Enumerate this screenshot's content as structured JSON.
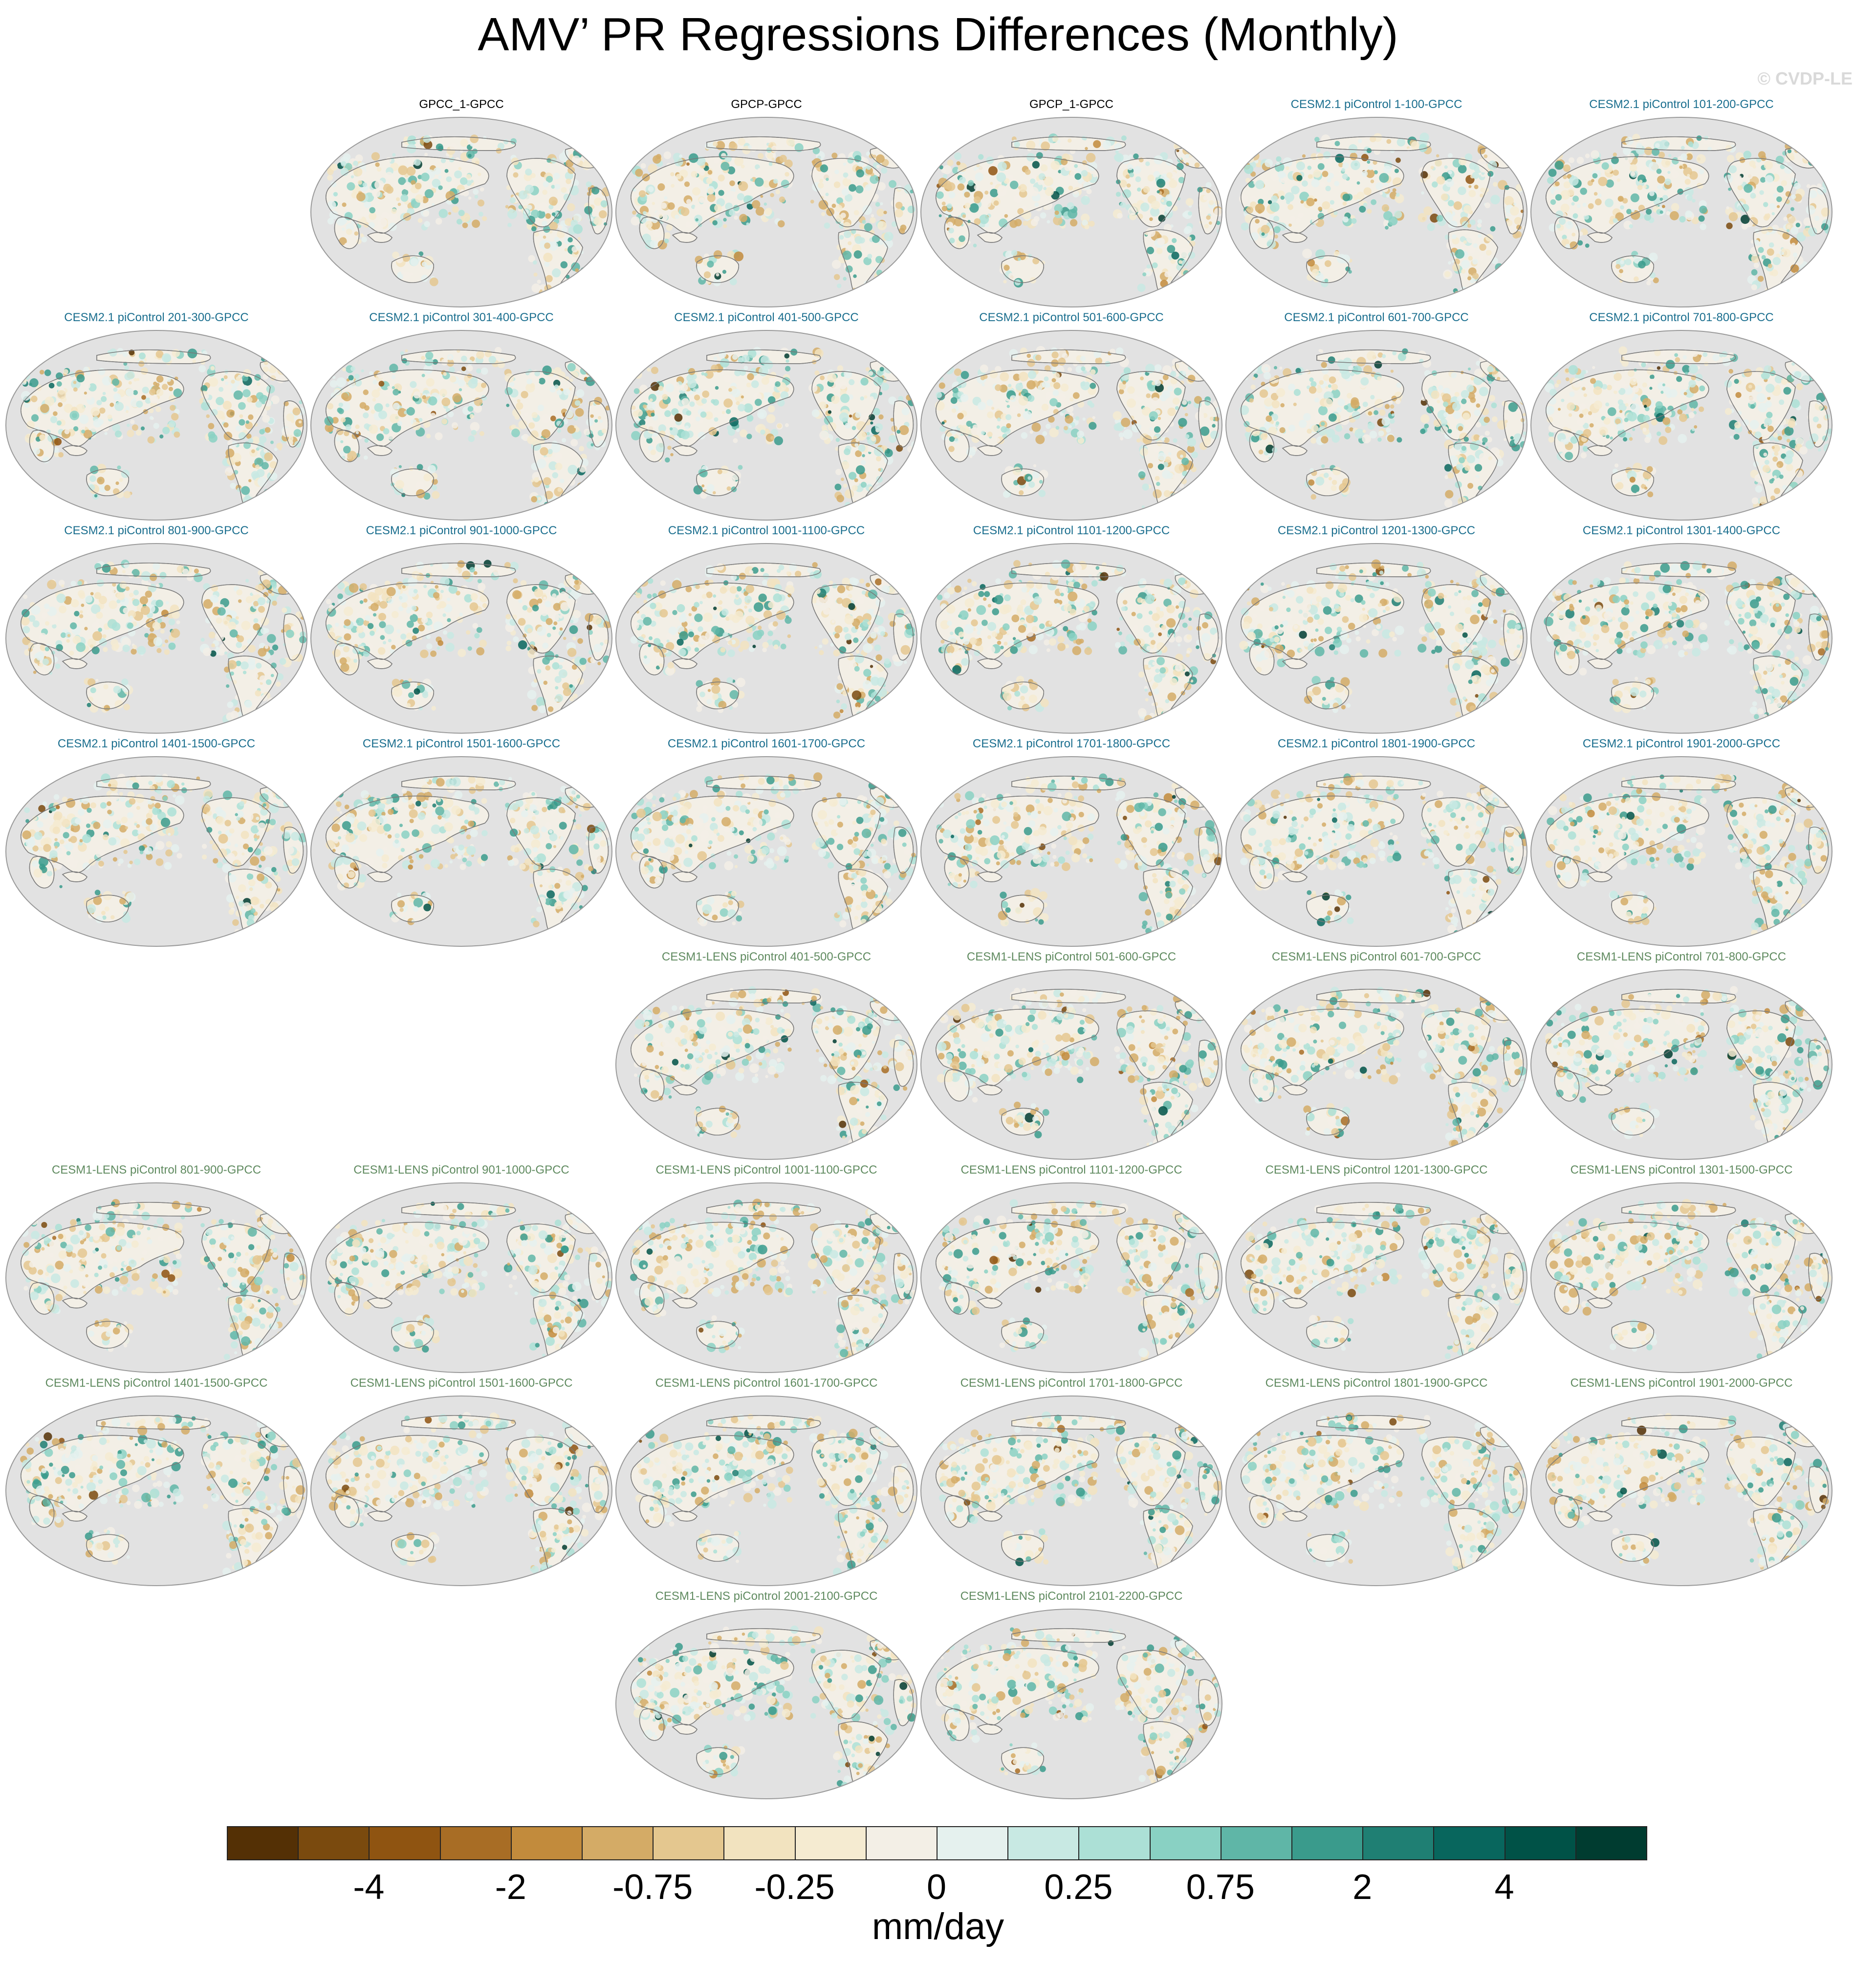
{
  "title": "AMV’ PR Regressions Differences (Monthly)",
  "watermark": "© CVDP-LE",
  "colors": {
    "obs_title": "#000000",
    "cesm2_title": "#1a6e8e",
    "cesm1_title": "#5f8a5f",
    "ocean": "#e2e2e2",
    "coast": "#7a7a7a"
  },
  "panels": [
    {
      "row": 0,
      "col": 1,
      "title": "GPCC_1-GPCC",
      "group": "obs"
    },
    {
      "row": 0,
      "col": 2,
      "title": "GPCP-GPCC",
      "group": "obs"
    },
    {
      "row": 0,
      "col": 3,
      "title": "GPCP_1-GPCC",
      "group": "obs"
    },
    {
      "row": 0,
      "col": 4,
      "title": "CESM2.1 piControl 1-100-GPCC",
      "group": "cesm2"
    },
    {
      "row": 0,
      "col": 5,
      "title": "CESM2.1 piControl 101-200-GPCC",
      "group": "cesm2"
    },
    {
      "row": 1,
      "col": 0,
      "title": "CESM2.1 piControl 201-300-GPCC",
      "group": "cesm2"
    },
    {
      "row": 1,
      "col": 1,
      "title": "CESM2.1 piControl 301-400-GPCC",
      "group": "cesm2"
    },
    {
      "row": 1,
      "col": 2,
      "title": "CESM2.1 piControl 401-500-GPCC",
      "group": "cesm2"
    },
    {
      "row": 1,
      "col": 3,
      "title": "CESM2.1 piControl 501-600-GPCC",
      "group": "cesm2"
    },
    {
      "row": 1,
      "col": 4,
      "title": "CESM2.1 piControl 601-700-GPCC",
      "group": "cesm2"
    },
    {
      "row": 1,
      "col": 5,
      "title": "CESM2.1 piControl 701-800-GPCC",
      "group": "cesm2"
    },
    {
      "row": 2,
      "col": 0,
      "title": "CESM2.1 piControl 801-900-GPCC",
      "group": "cesm2"
    },
    {
      "row": 2,
      "col": 1,
      "title": "CESM2.1 piControl 901-1000-GPCC",
      "group": "cesm2"
    },
    {
      "row": 2,
      "col": 2,
      "title": "CESM2.1 piControl 1001-1100-GPCC",
      "group": "cesm2"
    },
    {
      "row": 2,
      "col": 3,
      "title": "CESM2.1 piControl 1101-1200-GPCC",
      "group": "cesm2"
    },
    {
      "row": 2,
      "col": 4,
      "title": "CESM2.1 piControl 1201-1300-GPCC",
      "group": "cesm2"
    },
    {
      "row": 2,
      "col": 5,
      "title": "CESM2.1 piControl 1301-1400-GPCC",
      "group": "cesm2"
    },
    {
      "row": 3,
      "col": 0,
      "title": "CESM2.1 piControl 1401-1500-GPCC",
      "group": "cesm2"
    },
    {
      "row": 3,
      "col": 1,
      "title": "CESM2.1 piControl 1501-1600-GPCC",
      "group": "cesm2"
    },
    {
      "row": 3,
      "col": 2,
      "title": "CESM2.1 piControl 1601-1700-GPCC",
      "group": "cesm2"
    },
    {
      "row": 3,
      "col": 3,
      "title": "CESM2.1 piControl 1701-1800-GPCC",
      "group": "cesm2"
    },
    {
      "row": 3,
      "col": 4,
      "title": "CESM2.1 piControl 1801-1900-GPCC",
      "group": "cesm2"
    },
    {
      "row": 3,
      "col": 5,
      "title": "CESM2.1 piControl 1901-2000-GPCC",
      "group": "cesm2"
    },
    {
      "row": 4,
      "col": 2,
      "title": "CESM1-LENS piControl 401-500-GPCC",
      "group": "cesm1"
    },
    {
      "row": 4,
      "col": 3,
      "title": "CESM1-LENS piControl 501-600-GPCC",
      "group": "cesm1"
    },
    {
      "row": 4,
      "col": 4,
      "title": "CESM1-LENS piControl 601-700-GPCC",
      "group": "cesm1"
    },
    {
      "row": 4,
      "col": 5,
      "title": "CESM1-LENS piControl 701-800-GPCC",
      "group": "cesm1"
    },
    {
      "row": 5,
      "col": 0,
      "title": "CESM1-LENS piControl 801-900-GPCC",
      "group": "cesm1"
    },
    {
      "row": 5,
      "col": 1,
      "title": "CESM1-LENS piControl 901-1000-GPCC",
      "group": "cesm1"
    },
    {
      "row": 5,
      "col": 2,
      "title": "CESM1-LENS piControl 1001-1100-GPCC",
      "group": "cesm1"
    },
    {
      "row": 5,
      "col": 3,
      "title": "CESM1-LENS piControl 1101-1200-GPCC",
      "group": "cesm1"
    },
    {
      "row": 5,
      "col": 4,
      "title": "CESM1-LENS piControl 1201-1300-GPCC",
      "group": "cesm1"
    },
    {
      "row": 5,
      "col": 5,
      "title": "CESM1-LENS piControl 1301-1500-GPCC",
      "group": "cesm1"
    },
    {
      "row": 6,
      "col": 0,
      "title": "CESM1-LENS piControl 1401-1500-GPCC",
      "group": "cesm1"
    },
    {
      "row": 6,
      "col": 1,
      "title": "CESM1-LENS piControl 1501-1600-GPCC",
      "group": "cesm1"
    },
    {
      "row": 6,
      "col": 2,
      "title": "CESM1-LENS piControl 1601-1700-GPCC",
      "group": "cesm1"
    },
    {
      "row": 6,
      "col": 3,
      "title": "CESM1-LENS piControl 1701-1800-GPCC",
      "group": "cesm1"
    },
    {
      "row": 6,
      "col": 4,
      "title": "CESM1-LENS piControl 1801-1900-GPCC",
      "group": "cesm1"
    },
    {
      "row": 6,
      "col": 5,
      "title": "CESM1-LENS piControl 1901-2000-GPCC",
      "group": "cesm1"
    },
    {
      "row": 7,
      "col": 2,
      "title": "CESM1-LENS piControl 2001-2100-GPCC",
      "group": "cesm1"
    },
    {
      "row": 7,
      "col": 3,
      "title": "CESM1-LENS piControl 2101-2200-GPCC",
      "group": "cesm1"
    }
  ],
  "colorbar": {
    "colors": [
      "#543005",
      "#7a4a0e",
      "#8f5411",
      "#a86d25",
      "#c28b3c",
      "#d4ab66",
      "#e4c78f",
      "#f2e3bf",
      "#f5ebd1",
      "#f3efe6",
      "#e5f1ee",
      "#c8e9e3",
      "#ace0d6",
      "#89d1c3",
      "#5fb6a7",
      "#3a9b8c",
      "#1f7f73",
      "#08665d",
      "#005247",
      "#003c30"
    ],
    "labels": [
      "-4",
      "-2",
      "-0.75",
      "-0.25",
      "0",
      "0.25",
      "0.75",
      "2",
      "4"
    ],
    "unit": "mm/day"
  }
}
